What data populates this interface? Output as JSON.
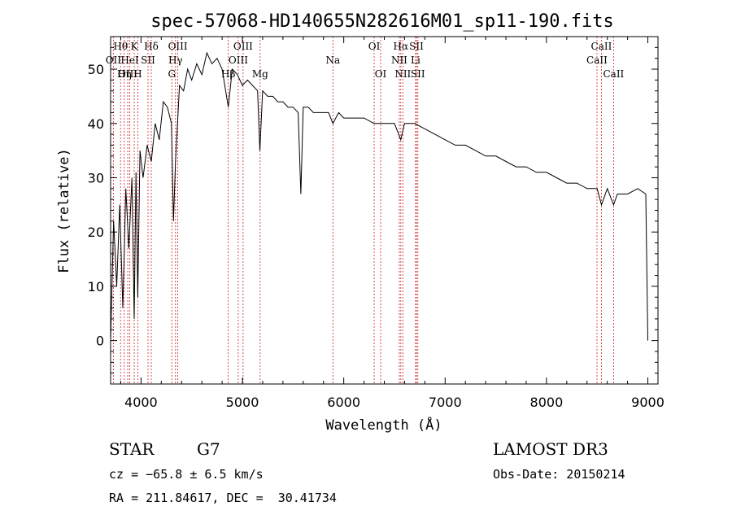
{
  "chart_data": {
    "type": "line",
    "title": "spec-57068-HD140655N282616M01_sp11-190.fits",
    "xlabel": "Wavelength (Å)",
    "ylabel": "Flux (relative)",
    "xlim": [
      3700,
      9100
    ],
    "ylim": [
      -8,
      56
    ],
    "xticks": [
      4000,
      5000,
      6000,
      7000,
      8000,
      9000
    ],
    "yticks": [
      0,
      10,
      20,
      30,
      40,
      50
    ],
    "series": [
      {
        "name": "flux",
        "x": [
          3700,
          3730,
          3760,
          3790,
          3820,
          3850,
          3880,
          3910,
          3933,
          3950,
          3968,
          3990,
          4020,
          4060,
          4101,
          4140,
          4180,
          4220,
          4260,
          4300,
          4320,
          4340,
          4380,
          4420,
          4460,
          4500,
          4550,
          4600,
          4650,
          4700,
          4750,
          4800,
          4861,
          4900,
          4950,
          5000,
          5050,
          5100,
          5150,
          5172,
          5200,
          5250,
          5300,
          5350,
          5400,
          5450,
          5500,
          5550,
          5577,
          5600,
          5650,
          5700,
          5750,
          5800,
          5850,
          5893,
          5950,
          6000,
          6100,
          6200,
          6300,
          6400,
          6500,
          6563,
          6600,
          6700,
          6800,
          6900,
          7000,
          7100,
          7200,
          7300,
          7400,
          7500,
          7600,
          7700,
          7800,
          7900,
          8000,
          8100,
          8200,
          8300,
          8400,
          8500,
          8542,
          8600,
          8662,
          8700,
          8800,
          8900,
          8980,
          9000
        ],
        "values": [
          0,
          22,
          10,
          25,
          6,
          28,
          17,
          30,
          4,
          31,
          8,
          35,
          30,
          36,
          33,
          40,
          37,
          44,
          43,
          40,
          22,
          33,
          47,
          46,
          50,
          48,
          51,
          49,
          53,
          51,
          52,
          50,
          43,
          50,
          49,
          47,
          48,
          47,
          46,
          35,
          46,
          45,
          45,
          44,
          44,
          43,
          43,
          42,
          27,
          43,
          43,
          42,
          42,
          42,
          42,
          40,
          42,
          41,
          41,
          41,
          40,
          40,
          40,
          37,
          40,
          40,
          39,
          38,
          37,
          36,
          36,
          35,
          34,
          34,
          33,
          32,
          32,
          31,
          31,
          30,
          29,
          29,
          28,
          28,
          25,
          28,
          25,
          27,
          27,
          28,
          27,
          0
        ]
      }
    ],
    "lines": [
      {
        "label": "Hθ",
        "wave": 3798,
        "row": 0
      },
      {
        "label": "K",
        "wave": 3933,
        "row": 0
      },
      {
        "label": "Hδ",
        "wave": 4101,
        "row": 0
      },
      {
        "label": "OII",
        "wave": 3727,
        "row": 1
      },
      {
        "label": "HeI",
        "wave": 3889,
        "row": 1
      },
      {
        "label": "SII",
        "wave": 4069,
        "row": 1
      },
      {
        "label": "OIII",
        "wave": 3869,
        "row": 2
      },
      {
        "label": "Hη",
        "wave": 3835,
        "row": 2
      },
      {
        "label": "H",
        "wave": 3968,
        "row": 2
      },
      {
        "label": "OIII",
        "wave": 4363,
        "row": 0
      },
      {
        "label": "Hγ",
        "wave": 4340,
        "row": 1
      },
      {
        "label": "G",
        "wave": 4304,
        "row": 2
      },
      {
        "label": "OIII",
        "wave": 5007,
        "row": 0
      },
      {
        "label": "OIII",
        "wave": 4959,
        "row": 1
      },
      {
        "label": "Hβ",
        "wave": 4861,
        "row": 2
      },
      {
        "label": "Mg",
        "wave": 5175,
        "row": 2
      },
      {
        "label": "Na",
        "wave": 5893,
        "row": 1
      },
      {
        "label": "OI",
        "wave": 6300,
        "row": 0
      },
      {
        "label": "OI",
        "wave": 6364,
        "row": 2
      },
      {
        "label": "Hα",
        "wave": 6563,
        "row": 0
      },
      {
        "label": "SII",
        "wave": 6717,
        "row": 0
      },
      {
        "label": "NII",
        "wave": 6548,
        "row": 1
      },
      {
        "label": "Li",
        "wave": 6708,
        "row": 1
      },
      {
        "label": "NII",
        "wave": 6583,
        "row": 2
      },
      {
        "label": "SII",
        "wave": 6731,
        "row": 2
      },
      {
        "label": "CaII",
        "wave": 8542,
        "row": 0
      },
      {
        "label": "CaII",
        "wave": 8498,
        "row": 1
      },
      {
        "label": "CaII",
        "wave": 8662,
        "row": 2
      }
    ]
  },
  "info": {
    "class": "STAR",
    "subclass": "G7",
    "survey": "LAMOST DR3",
    "cz": "cz = −65.8 ± 6.5 km/s",
    "obs_date": "Obs-Date: 20150214",
    "radec": "RA = 211.84617, DEC =  30.41734"
  },
  "colors": {
    "spectrum": "#000000",
    "line_markers": "#cc2222",
    "axes": "#000000"
  }
}
